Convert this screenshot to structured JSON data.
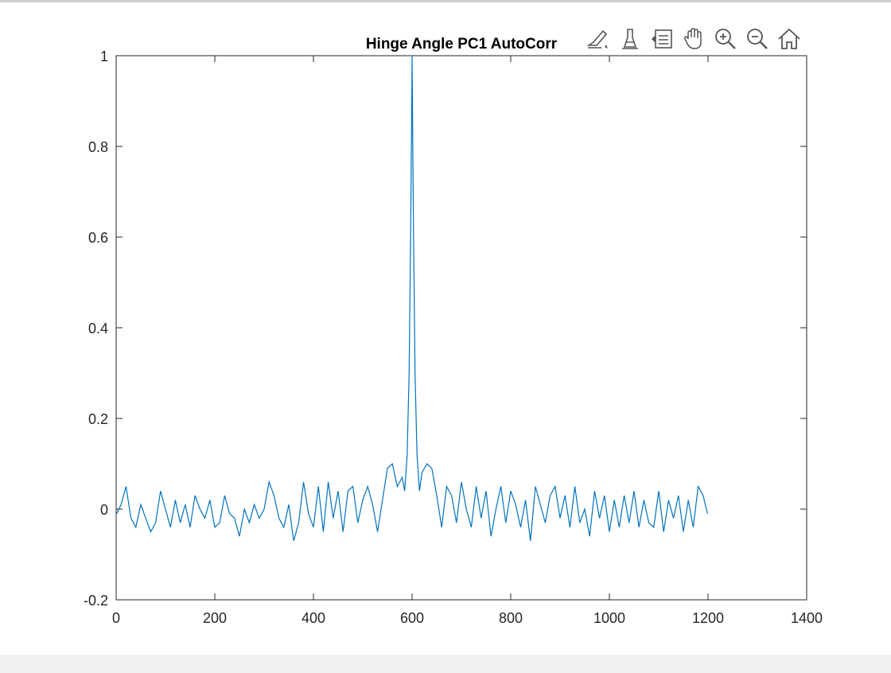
{
  "toolbar": {
    "icons": [
      "data-tips-icon",
      "brush-icon",
      "legend-icon",
      "pan-hand-icon",
      "zoom-in-icon",
      "zoom-out-icon",
      "home-icon"
    ]
  },
  "colors": {
    "line": "#0072BD",
    "axis": "#262626",
    "background": "#ffffff",
    "window": "#f0f0f0"
  },
  "chart_data": {
    "type": "line",
    "title": "Hinge Angle PC1 AutoCorr",
    "xlabel": "",
    "ylabel": "",
    "xlim": [
      0,
      1400
    ],
    "ylim": [
      -0.2,
      1
    ],
    "xticks": [
      0,
      200,
      400,
      600,
      800,
      1000,
      1200,
      1400
    ],
    "yticks": [
      -0.2,
      0,
      0.2,
      0.4,
      0.6,
      0.8,
      1
    ],
    "xtick_labels": [
      "0",
      "200",
      "400",
      "600",
      "800",
      "1000",
      "1200",
      "1400"
    ],
    "ytick_labels": [
      "-0.2",
      "0",
      "0.2",
      "0.4",
      "0.6",
      "0.8",
      "1"
    ],
    "grid": false,
    "series": [
      {
        "x": [
          1,
          10,
          20,
          30,
          40,
          50,
          60,
          70,
          80,
          90,
          100,
          110,
          120,
          130,
          140,
          150,
          160,
          170,
          180,
          190,
          200,
          210,
          220,
          230,
          240,
          250,
          260,
          270,
          280,
          290,
          300,
          310,
          320,
          330,
          340,
          350,
          360,
          370,
          380,
          390,
          400,
          410,
          420,
          430,
          440,
          450,
          460,
          470,
          480,
          490,
          500,
          510,
          520,
          530,
          540,
          550,
          560,
          570,
          580,
          585,
          590,
          594,
          597,
          599,
          600,
          601,
          603,
          606,
          610,
          615,
          620,
          630,
          640,
          650,
          660,
          670,
          680,
          690,
          700,
          710,
          720,
          730,
          740,
          750,
          760,
          770,
          780,
          790,
          800,
          810,
          820,
          830,
          840,
          850,
          860,
          870,
          880,
          890,
          900,
          910,
          920,
          930,
          940,
          950,
          960,
          970,
          980,
          990,
          1000,
          1010,
          1020,
          1030,
          1040,
          1050,
          1060,
          1070,
          1080,
          1090,
          1100,
          1110,
          1120,
          1130,
          1140,
          1150,
          1160,
          1170,
          1180,
          1190,
          1199
        ],
        "y": [
          -0.01,
          0.01,
          0.05,
          -0.02,
          -0.04,
          0.01,
          -0.02,
          -0.05,
          -0.03,
          0.04,
          0.0,
          -0.04,
          0.02,
          -0.03,
          0.01,
          -0.04,
          0.03,
          0.0,
          -0.02,
          0.02,
          -0.04,
          -0.03,
          0.03,
          -0.01,
          -0.02,
          -0.06,
          0.0,
          -0.03,
          0.01,
          -0.02,
          0.0,
          0.06,
          0.03,
          -0.02,
          -0.04,
          0.01,
          -0.07,
          -0.03,
          0.06,
          -0.01,
          -0.04,
          0.05,
          -0.05,
          0.06,
          -0.02,
          0.04,
          -0.05,
          0.04,
          0.05,
          -0.03,
          0.02,
          0.05,
          0.01,
          -0.05,
          0.02,
          0.09,
          0.1,
          0.05,
          0.07,
          0.04,
          0.12,
          0.3,
          0.6,
          0.85,
          1.0,
          0.85,
          0.6,
          0.3,
          0.12,
          0.04,
          0.08,
          0.1,
          0.09,
          0.03,
          -0.04,
          0.05,
          0.03,
          -0.03,
          0.06,
          0.0,
          -0.04,
          0.05,
          -0.02,
          0.04,
          -0.06,
          0.0,
          0.05,
          -0.03,
          0.04,
          0.01,
          -0.04,
          0.02,
          -0.07,
          0.05,
          0.01,
          -0.03,
          0.03,
          0.05,
          -0.02,
          0.03,
          -0.04,
          0.05,
          -0.03,
          0.0,
          -0.06,
          0.04,
          -0.02,
          0.03,
          -0.05,
          0.02,
          -0.04,
          0.03,
          -0.03,
          0.04,
          -0.04,
          0.02,
          -0.03,
          -0.04,
          0.04,
          -0.05,
          0.02,
          -0.02,
          0.03,
          -0.05,
          0.02,
          -0.04,
          0.05,
          0.03,
          -0.01
        ]
      }
    ]
  }
}
